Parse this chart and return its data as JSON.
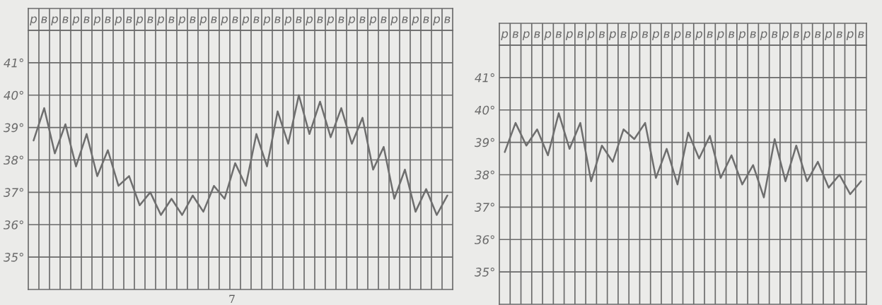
{
  "chart_data": [
    {
      "type": "line",
      "categories": [
        "р",
        "в",
        "р",
        "в",
        "р",
        "в",
        "р",
        "в",
        "р",
        "в",
        "р",
        "в",
        "р",
        "в",
        "р",
        "в",
        "р",
        "в",
        "р",
        "в",
        "р",
        "в",
        "р",
        "в",
        "р",
        "в",
        "р",
        "в",
        "р",
        "в",
        "р",
        "в",
        "р",
        "в",
        "р",
        "в",
        "р",
        "в",
        "р",
        "в"
      ],
      "series": [
        {
          "color": "#6e6e6e",
          "values": [
            38.6,
            39.6,
            38.2,
            39.1,
            37.8,
            38.8,
            37.5,
            38.3,
            37.2,
            37.5,
            36.6,
            37.0,
            36.3,
            36.8,
            36.3,
            36.9,
            36.4,
            37.2,
            36.8,
            37.9,
            37.2,
            38.8,
            37.8,
            39.5,
            38.5,
            40.0,
            38.8,
            39.8,
            38.7,
            39.6,
            38.5,
            39.3,
            37.7,
            38.4,
            36.8,
            37.7,
            36.4,
            37.1,
            36.3,
            36.9
          ]
        }
      ],
      "ylim": [
        34,
        42
      ],
      "yticks": [
        {
          "value": 35,
          "label": "35°"
        },
        {
          "value": 36,
          "label": "36°"
        },
        {
          "value": 37,
          "label": "37°"
        },
        {
          "value": 38,
          "label": "38°"
        },
        {
          "value": 39,
          "label": "39°"
        },
        {
          "value": 40,
          "label": "40°"
        },
        {
          "value": 41,
          "label": "41°"
        }
      ],
      "grid": true,
      "annotations": [
        "7"
      ]
    },
    {
      "type": "line",
      "categories": [
        "р",
        "в",
        "р",
        "в",
        "р",
        "в",
        "р",
        "в",
        "р",
        "в",
        "р",
        "в",
        "р",
        "в",
        "р",
        "в",
        "р",
        "в",
        "р",
        "в",
        "р",
        "в",
        "р",
        "в",
        "р",
        "в",
        "р",
        "в",
        "р",
        "в",
        "р",
        "в",
        "р",
        "в"
      ],
      "series": [
        {
          "color": "#6e6e6e",
          "values": [
            38.7,
            39.6,
            38.9,
            39.4,
            38.6,
            39.9,
            38.8,
            39.6,
            37.8,
            38.9,
            38.4,
            39.4,
            39.1,
            39.6,
            37.9,
            38.8,
            37.7,
            39.3,
            38.5,
            39.2,
            37.9,
            38.6,
            37.7,
            38.3,
            37.3,
            39.1,
            37.8,
            38.9,
            37.8,
            38.4,
            37.6,
            38.0,
            37.4,
            37.8
          ]
        }
      ],
      "ylim": [
        34,
        42
      ],
      "yticks": [
        {
          "value": 35,
          "label": "35°"
        },
        {
          "value": 36,
          "label": "36°"
        },
        {
          "value": 37,
          "label": "37°"
        },
        {
          "value": 38,
          "label": "38°"
        },
        {
          "value": 39,
          "label": "39°"
        },
        {
          "value": 40,
          "label": "40°"
        },
        {
          "value": 41,
          "label": "41°"
        }
      ],
      "grid": true
    }
  ]
}
